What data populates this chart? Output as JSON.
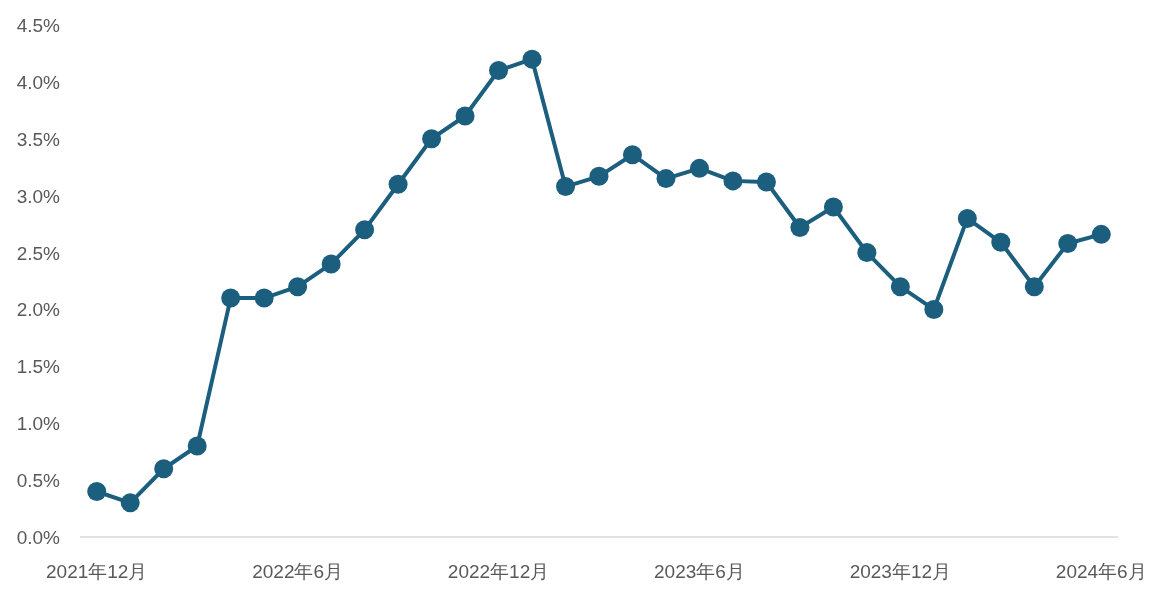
{
  "chart_data": {
    "type": "line",
    "categories": [
      "2021年12月",
      null,
      null,
      null,
      null,
      null,
      "2022年6月",
      null,
      null,
      null,
      null,
      null,
      "2022年12月",
      null,
      null,
      null,
      null,
      null,
      "2023年6月",
      null,
      null,
      null,
      null,
      null,
      "2023年12月",
      null,
      null,
      null,
      null,
      null,
      "2024年6月"
    ],
    "series": [
      {
        "color": "#1b5e7e",
        "values": [
          0.4,
          0.3,
          0.6,
          0.8,
          2.1,
          2.1,
          2.2,
          2.4,
          2.7,
          3.1,
          3.5,
          3.7,
          4.1,
          4.2,
          3.08,
          3.17,
          3.36,
          3.15,
          3.24,
          3.13,
          3.12,
          2.72,
          2.9,
          2.5,
          2.2,
          2.0,
          2.8,
          2.59,
          2.2,
          2.58,
          2.66
        ]
      }
    ],
    "ylim": [
      0,
      4.5
    ],
    "yticks": [
      {
        "value": 0,
        "label": "0.0%"
      },
      {
        "value": 0.5,
        "label": "0.5%"
      },
      {
        "value": 1,
        "label": "1.0%"
      },
      {
        "value": 1.5,
        "label": "1.5%"
      },
      {
        "value": 2,
        "label": "2.0%"
      },
      {
        "value": 2.5,
        "label": "2.5%"
      },
      {
        "value": 3,
        "label": "3.0%"
      },
      {
        "value": 3.5,
        "label": "3.5%"
      },
      {
        "value": 4,
        "label": "4.0%"
      },
      {
        "value": 4.5,
        "label": "4.5%"
      }
    ],
    "marker": "circle",
    "line_style": "solid"
  }
}
